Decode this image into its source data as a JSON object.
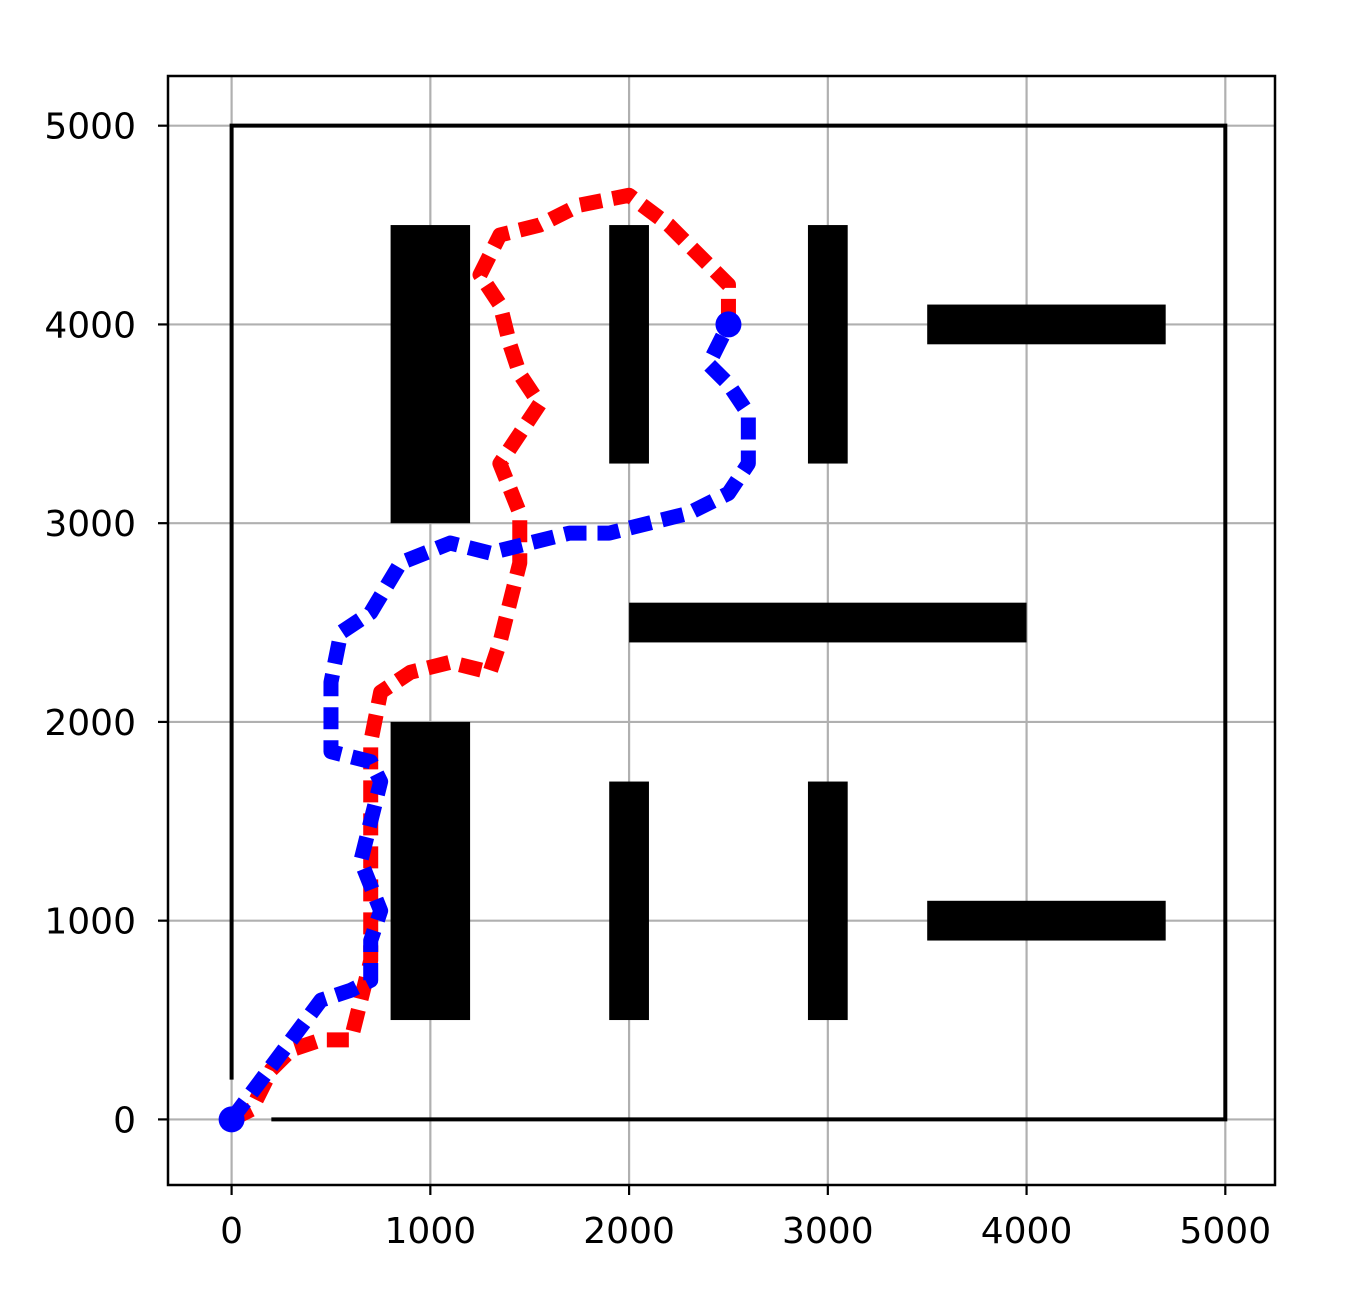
{
  "chart_data": {
    "type": "line",
    "title": "",
    "xlabel": "",
    "ylabel": "",
    "xlim": [
      -320,
      5250
    ],
    "ylim": [
      -330,
      5250
    ],
    "grid": true,
    "x_ticks": [
      0,
      1000,
      2000,
      3000,
      4000,
      5000
    ],
    "y_ticks": [
      0,
      1000,
      2000,
      3000,
      4000,
      5000
    ],
    "x_tick_labels": [
      "0",
      "1000",
      "2000",
      "3000",
      "4000",
      "5000"
    ],
    "y_tick_labels": [
      "0",
      "1000",
      "2000",
      "3000",
      "4000",
      "5000"
    ],
    "boundary": [
      [
        0,
        200
      ],
      [
        0,
        5000
      ],
      [
        5000,
        5000
      ],
      [
        5000,
        0
      ],
      [
        200,
        0
      ]
    ],
    "obstacles": [
      {
        "x0": 800,
        "y0": 3000,
        "x1": 1200,
        "y1": 4500
      },
      {
        "x0": 1900,
        "y0": 3300,
        "x1": 2100,
        "y1": 4500
      },
      {
        "x0": 2900,
        "y0": 3300,
        "x1": 3100,
        "y1": 4500
      },
      {
        "x0": 3500,
        "y0": 3900,
        "x1": 4700,
        "y1": 4100
      },
      {
        "x0": 2000,
        "y0": 2400,
        "x1": 4000,
        "y1": 2600
      },
      {
        "x0": 800,
        "y0": 500,
        "x1": 1200,
        "y1": 2000
      },
      {
        "x0": 1900,
        "y0": 500,
        "x1": 2100,
        "y1": 1700
      },
      {
        "x0": 2900,
        "y0": 500,
        "x1": 3100,
        "y1": 1700
      },
      {
        "x0": 3500,
        "y0": 900,
        "x1": 4700,
        "y1": 1100
      }
    ],
    "series": [
      {
        "color": "#0000ff",
        "points": [
          [
            0,
            0
          ],
          [
            150,
            200
          ],
          [
            300,
            400
          ],
          [
            450,
            600
          ],
          [
            600,
            650
          ],
          [
            700,
            700
          ],
          [
            700,
            900
          ],
          [
            750,
            1050
          ],
          [
            650,
            1300
          ],
          [
            700,
            1500
          ],
          [
            750,
            1700
          ],
          [
            700,
            1800
          ],
          [
            500,
            1850
          ],
          [
            500,
            2050
          ],
          [
            500,
            2200
          ],
          [
            550,
            2450
          ],
          [
            700,
            2550
          ],
          [
            850,
            2800
          ],
          [
            1100,
            2900
          ],
          [
            1300,
            2850
          ],
          [
            1500,
            2900
          ],
          [
            1700,
            2950
          ],
          [
            1900,
            2950
          ],
          [
            2100,
            3000
          ],
          [
            2300,
            3050
          ],
          [
            2500,
            3150
          ],
          [
            2600,
            3300
          ],
          [
            2600,
            3550
          ],
          [
            2500,
            3700
          ],
          [
            2400,
            3800
          ],
          [
            2450,
            3900
          ],
          [
            2500,
            4000
          ]
        ],
        "start": [
          0,
          0
        ],
        "end": [
          2500,
          4000
        ]
      },
      {
        "color": "#ff0000",
        "points": [
          [
            0,
            0
          ],
          [
            100,
            50
          ],
          [
            200,
            250
          ],
          [
            300,
            350
          ],
          [
            450,
            400
          ],
          [
            600,
            400
          ],
          [
            650,
            600
          ],
          [
            700,
            800
          ],
          [
            700,
            1100
          ],
          [
            700,
            1300
          ],
          [
            700,
            1600
          ],
          [
            700,
            1900
          ],
          [
            750,
            2150
          ],
          [
            900,
            2250
          ],
          [
            1100,
            2300
          ],
          [
            1300,
            2250
          ],
          [
            1350,
            2400
          ],
          [
            1400,
            2600
          ],
          [
            1450,
            2800
          ],
          [
            1450,
            3050
          ],
          [
            1350,
            3300
          ],
          [
            1450,
            3450
          ],
          [
            1550,
            3600
          ],
          [
            1450,
            3750
          ],
          [
            1400,
            3900
          ],
          [
            1350,
            4100
          ],
          [
            1250,
            4250
          ],
          [
            1350,
            4450
          ],
          [
            1550,
            4500
          ],
          [
            1750,
            4600
          ],
          [
            2000,
            4650
          ],
          [
            2200,
            4500
          ],
          [
            2400,
            4300
          ],
          [
            2500,
            4200
          ],
          [
            2500,
            4000
          ]
        ]
      }
    ]
  }
}
